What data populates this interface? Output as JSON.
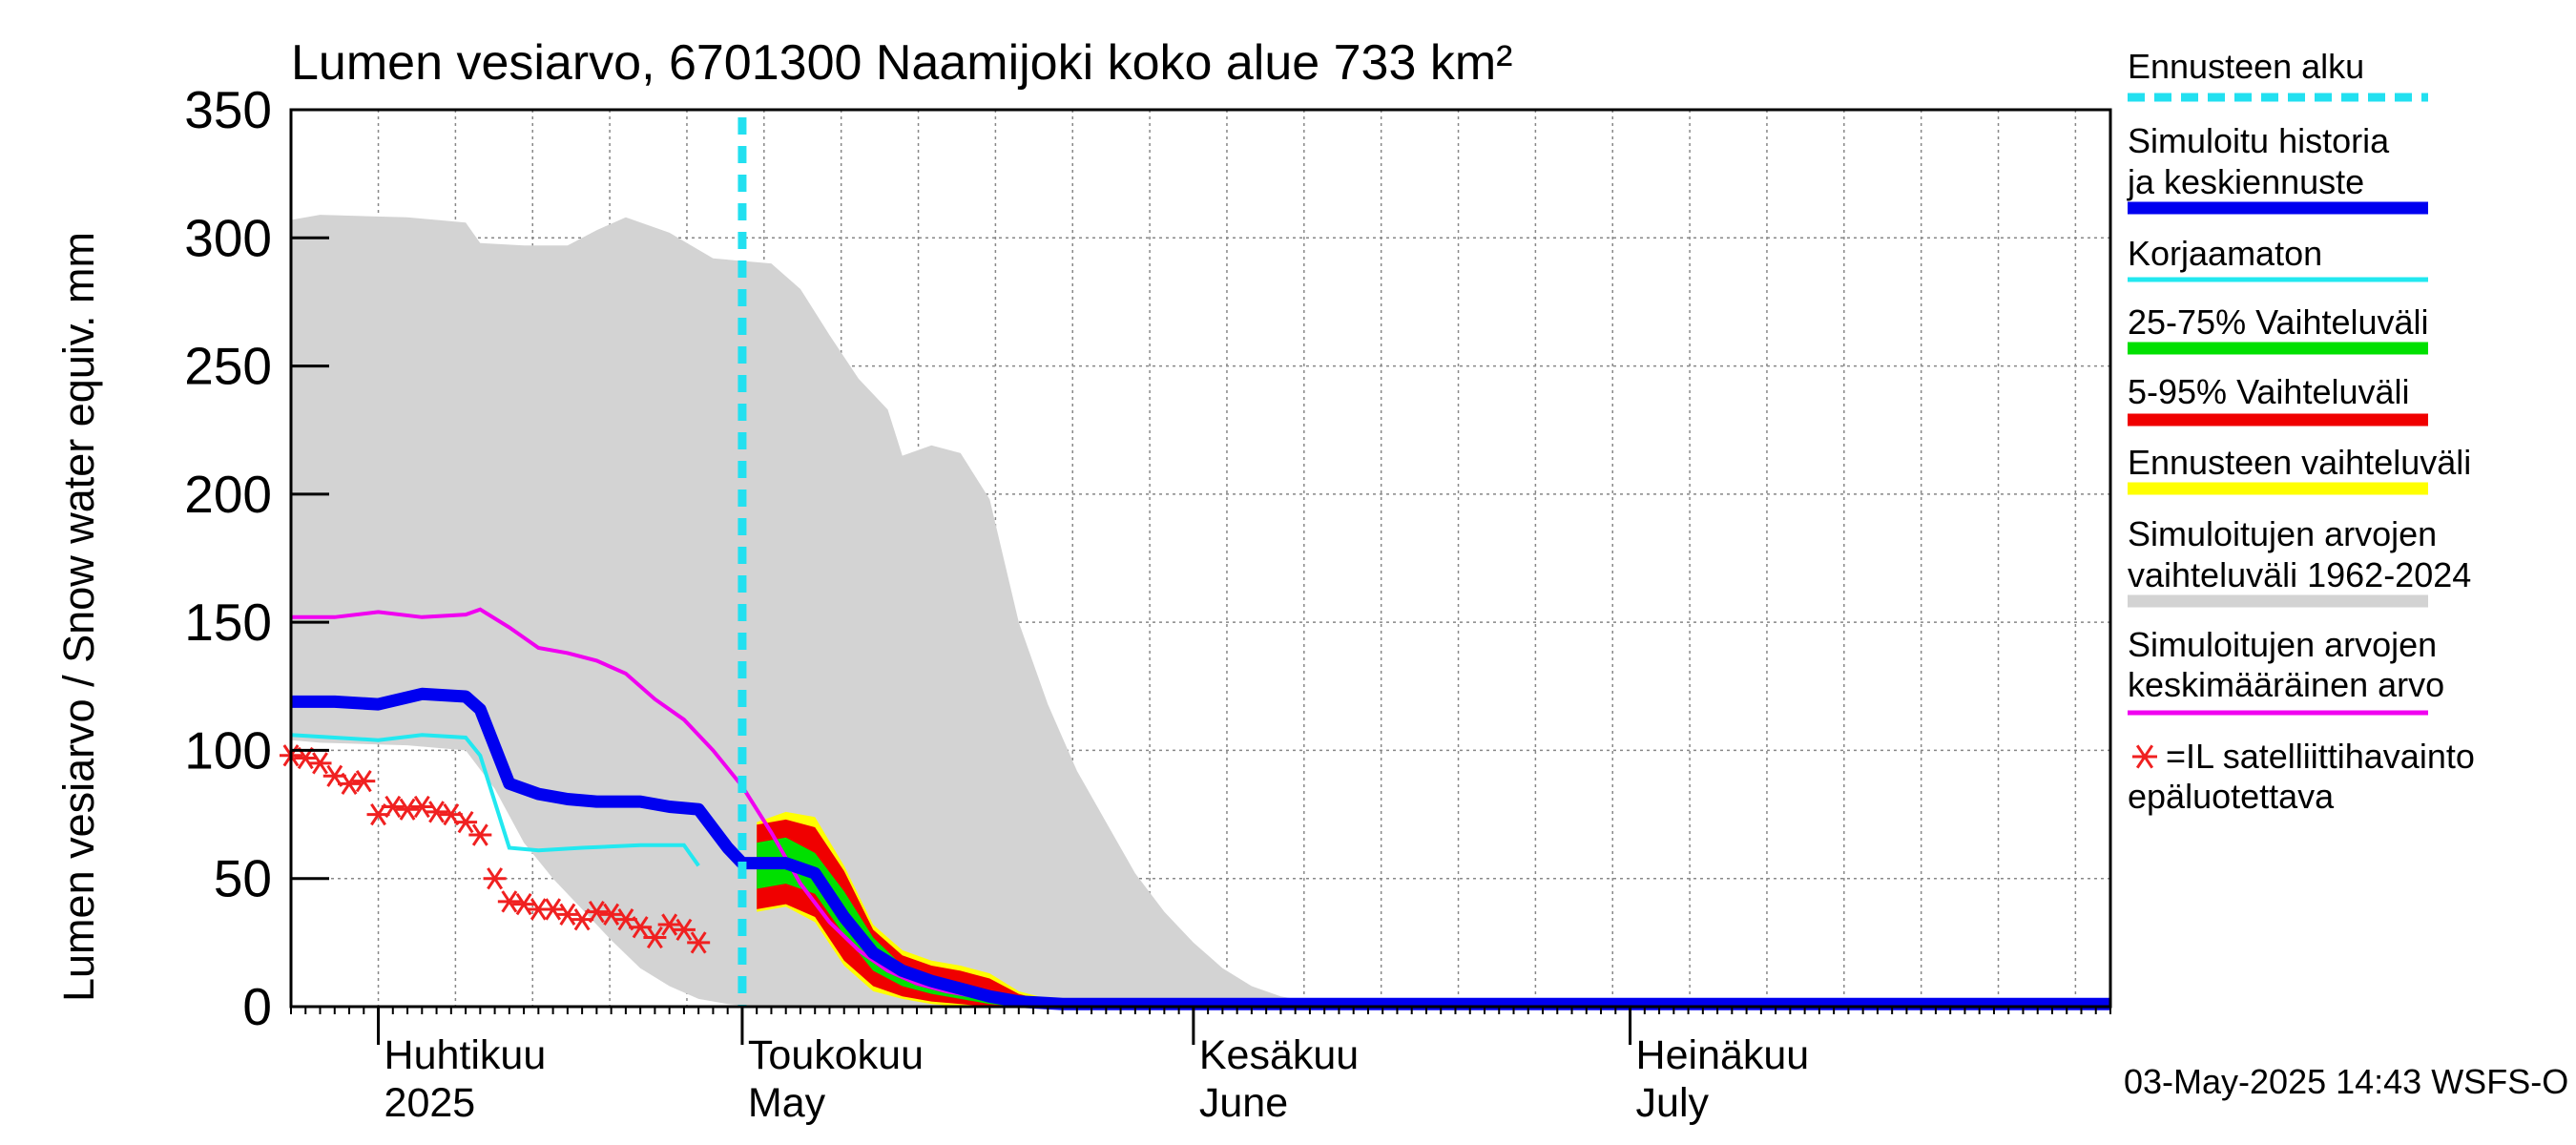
{
  "chart_data": {
    "type": "area",
    "title": "Lumen vesiarvo, 6701300 Naamijoki koko alue 733 km²",
    "ylabel": "Lumen vesiarvo / Snow water equiv.    mm",
    "ylim": [
      0,
      350
    ],
    "yticks": [
      0,
      50,
      100,
      150,
      200,
      250,
      300,
      350
    ],
    "xlim_days": [
      0,
      125
    ],
    "x_unit": "days since 2025-03-26",
    "month_ticks": [
      {
        "day": 6,
        "label_fi": "Huhtikuu",
        "label_en": "2025"
      },
      {
        "day": 31,
        "label_fi": "Toukokuu",
        "label_en": "May"
      },
      {
        "day": 62,
        "label_fi": "Kesäkuu",
        "label_en": "June"
      },
      {
        "day": 92,
        "label_fi": "Heinäkuu",
        "label_en": "July"
      }
    ],
    "forecast_start_day": 31,
    "footer": "03-May-2025 14:43 WSFS-O",
    "legend": [
      {
        "key": "forecast_start",
        "label": "Ennusteen alku",
        "color": "#22e0f0",
        "style": "dashed"
      },
      {
        "key": "simulated",
        "label": "Simuloitu historia ja keskiennuste",
        "color": "#0000f0",
        "style": "thick"
      },
      {
        "key": "uncorrected",
        "label": "Korjaamaton",
        "color": "#22e8f0",
        "style": "thin"
      },
      {
        "key": "p25_75",
        "label": "25-75% Vaihteluväli",
        "color": "#00e000",
        "style": "thick"
      },
      {
        "key": "p5_95",
        "label": "5-95% Vaihteluväli",
        "color": "#f00000",
        "style": "thick"
      },
      {
        "key": "forecast_range",
        "label": "Ennusteen vaihteluväli",
        "color": "#ffff00",
        "style": "thick"
      },
      {
        "key": "hist_range",
        "label": "Simuloitujen arvojen vaihteluväli 1962-2024",
        "color": "#d3d3d3",
        "style": "thick"
      },
      {
        "key": "hist_mean",
        "label": "Simuloitujen arvojen keskimääräinen arvo",
        "color": "#f000f0",
        "style": "thin"
      },
      {
        "key": "satellite",
        "label": "=IL satelliittihavainto epäluotettava",
        "color": "#f02020",
        "style": "marker"
      }
    ],
    "series": {
      "hist_range_upper": [
        [
          0,
          307
        ],
        [
          2,
          309
        ],
        [
          8,
          308
        ],
        [
          12,
          306
        ],
        [
          13,
          298
        ],
        [
          16,
          297
        ],
        [
          19,
          297
        ],
        [
          21,
          303
        ],
        [
          23,
          308
        ],
        [
          26,
          302
        ],
        [
          29,
          292
        ],
        [
          31,
          291
        ],
        [
          33,
          290
        ],
        [
          35,
          280
        ],
        [
          37,
          262
        ],
        [
          39,
          245
        ],
        [
          41,
          233
        ],
        [
          42,
          215
        ],
        [
          44,
          219
        ],
        [
          46,
          216
        ],
        [
          48,
          198
        ],
        [
          50,
          150
        ],
        [
          52,
          118
        ],
        [
          54,
          92
        ],
        [
          56,
          72
        ],
        [
          58,
          52
        ],
        [
          60,
          37
        ],
        [
          62,
          25
        ],
        [
          64,
          15
        ],
        [
          66,
          8
        ],
        [
          68,
          4
        ],
        [
          70,
          2
        ],
        [
          72,
          1
        ],
        [
          125,
          1
        ]
      ],
      "hist_range_lower": [
        [
          0,
          104
        ],
        [
          2,
          103
        ],
        [
          8,
          102
        ],
        [
          12,
          100
        ],
        [
          14,
          85
        ],
        [
          16,
          64
        ],
        [
          18,
          50
        ],
        [
          20,
          38
        ],
        [
          22,
          26
        ],
        [
          24,
          15
        ],
        [
          26,
          8
        ],
        [
          28,
          3
        ],
        [
          30,
          1
        ],
        [
          32,
          0
        ],
        [
          125,
          0
        ]
      ],
      "hist_mean": [
        [
          0,
          152
        ],
        [
          3,
          152
        ],
        [
          6,
          154
        ],
        [
          9,
          152
        ],
        [
          12,
          153
        ],
        [
          13,
          155
        ],
        [
          15,
          148
        ],
        [
          17,
          140
        ],
        [
          19,
          138
        ],
        [
          21,
          135
        ],
        [
          23,
          130
        ],
        [
          25,
          120
        ],
        [
          27,
          112
        ],
        [
          29,
          100
        ],
        [
          31,
          86
        ],
        [
          33,
          68
        ],
        [
          35,
          48
        ],
        [
          37,
          33
        ],
        [
          39,
          22
        ],
        [
          41,
          14
        ],
        [
          43,
          9
        ],
        [
          45,
          6
        ],
        [
          47,
          4
        ],
        [
          49,
          3
        ],
        [
          52,
          2
        ],
        [
          125,
          1
        ]
      ],
      "simulated": [
        [
          0,
          119
        ],
        [
          3,
          119
        ],
        [
          6,
          118
        ],
        [
          9,
          122
        ],
        [
          12,
          121
        ],
        [
          13,
          116
        ],
        [
          15,
          87
        ],
        [
          17,
          83
        ],
        [
          19,
          81
        ],
        [
          21,
          80
        ],
        [
          24,
          80
        ],
        [
          26,
          78
        ],
        [
          28,
          77
        ],
        [
          30,
          62
        ],
        [
          31,
          56
        ],
        [
          34,
          56
        ],
        [
          36,
          52
        ],
        [
          38,
          35
        ],
        [
          40,
          21
        ],
        [
          42,
          14
        ],
        [
          44,
          10
        ],
        [
          46,
          7
        ],
        [
          48,
          4
        ],
        [
          50,
          2
        ],
        [
          53,
          1
        ],
        [
          125,
          1
        ]
      ],
      "uncorrected": [
        [
          0,
          106
        ],
        [
          3,
          105
        ],
        [
          6,
          104
        ],
        [
          9,
          106
        ],
        [
          12,
          105
        ],
        [
          13,
          98
        ],
        [
          15,
          62
        ],
        [
          17,
          61
        ],
        [
          20,
          62
        ],
        [
          24,
          63
        ],
        [
          27,
          63
        ],
        [
          28,
          55
        ]
      ],
      "p5_95_upper": [
        [
          32,
          71
        ],
        [
          34,
          73
        ],
        [
          36,
          70
        ],
        [
          38,
          53
        ],
        [
          40,
          30
        ],
        [
          42,
          20
        ],
        [
          44,
          16
        ],
        [
          46,
          14
        ],
        [
          48,
          11
        ],
        [
          50,
          5
        ],
        [
          52,
          2
        ],
        [
          55,
          1
        ]
      ],
      "p5_95_lower": [
        [
          32,
          38
        ],
        [
          34,
          40
        ],
        [
          36,
          35
        ],
        [
          38,
          18
        ],
        [
          40,
          8
        ],
        [
          42,
          4
        ],
        [
          44,
          2
        ],
        [
          46,
          1
        ],
        [
          48,
          0
        ],
        [
          55,
          0
        ]
      ],
      "p25_75_upper": [
        [
          32,
          64
        ],
        [
          34,
          66
        ],
        [
          36,
          60
        ],
        [
          38,
          45
        ],
        [
          40,
          27
        ],
        [
          42,
          16
        ],
        [
          44,
          12
        ],
        [
          46,
          8
        ],
        [
          48,
          5
        ],
        [
          50,
          2
        ],
        [
          53,
          1
        ]
      ],
      "p25_75_lower": [
        [
          32,
          46
        ],
        [
          34,
          48
        ],
        [
          36,
          44
        ],
        [
          38,
          28
        ],
        [
          40,
          14
        ],
        [
          42,
          8
        ],
        [
          44,
          5
        ],
        [
          46,
          3
        ],
        [
          48,
          1
        ],
        [
          50,
          0
        ],
        [
          53,
          0
        ]
      ],
      "forecast_range_upper": [
        [
          32,
          72
        ],
        [
          34,
          76
        ],
        [
          36,
          74
        ],
        [
          38,
          55
        ],
        [
          40,
          32
        ],
        [
          42,
          22
        ],
        [
          44,
          18
        ],
        [
          46,
          16
        ],
        [
          48,
          13
        ],
        [
          50,
          6
        ],
        [
          52,
          3
        ],
        [
          55,
          1
        ]
      ],
      "forecast_range_lower": [
        [
          32,
          37
        ],
        [
          34,
          39
        ],
        [
          36,
          33
        ],
        [
          38,
          16
        ],
        [
          40,
          6
        ],
        [
          42,
          3
        ],
        [
          44,
          1
        ],
        [
          46,
          0
        ],
        [
          55,
          0
        ]
      ],
      "satellite": [
        [
          0,
          98
        ],
        [
          1,
          97
        ],
        [
          2,
          95
        ],
        [
          3,
          90
        ],
        [
          4,
          87
        ],
        [
          5,
          88
        ],
        [
          6,
          75
        ],
        [
          7,
          78
        ],
        [
          8,
          77
        ],
        [
          9,
          78
        ],
        [
          10,
          76
        ],
        [
          11,
          75
        ],
        [
          12,
          72
        ],
        [
          13,
          67
        ],
        [
          14,
          50
        ],
        [
          15,
          41
        ],
        [
          16,
          40
        ],
        [
          17,
          38
        ],
        [
          18,
          38
        ],
        [
          19,
          36
        ],
        [
          20,
          34
        ],
        [
          21,
          37
        ],
        [
          22,
          36
        ],
        [
          23,
          34
        ],
        [
          24,
          31
        ],
        [
          25,
          27
        ],
        [
          26,
          32
        ],
        [
          27,
          30
        ],
        [
          28,
          25
        ]
      ]
    }
  }
}
